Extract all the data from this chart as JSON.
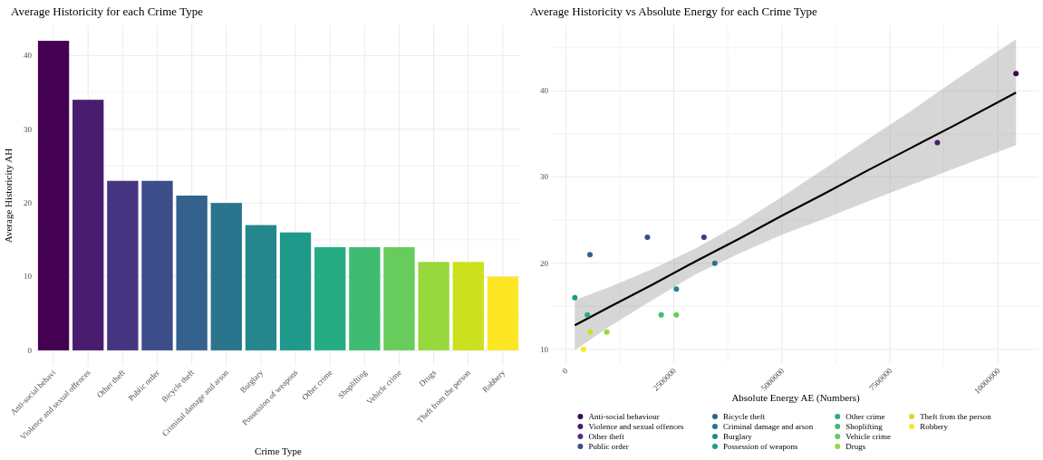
{
  "chart_data": [
    {
      "type": "bar",
      "title": "Average Historicity for each Crime Type",
      "xlabel": "Crime Type",
      "ylabel": "Average Historicity AH",
      "categories": [
        "Anti-social behavi",
        "Violence and sexual offences",
        "Other theft",
        "Public order",
        "Bicycle theft",
        "Criminal damage and arson",
        "Burglary",
        "Possession of weapons",
        "Other crime",
        "Shoplifting",
        "Vehicle crime",
        "Drugs",
        "Theft from the person",
        "Robbery"
      ],
      "values": [
        42,
        34,
        23,
        23,
        21,
        20,
        17,
        16,
        14,
        14,
        14,
        12,
        12,
        10
      ],
      "colors": [
        "#440154",
        "#481c6e",
        "#453581",
        "#3d4d8a",
        "#34618d",
        "#2b748e",
        "#24878e",
        "#1f998a",
        "#25ac82",
        "#40bc72",
        "#67cc5c",
        "#97d83f",
        "#cbe11e",
        "#fde725"
      ],
      "ylim": [
        -2.1,
        44.1
      ],
      "yticks": [
        0,
        {
          "value": 5,
          "label": null
        },
        10,
        {
          "value": 15,
          "label": null
        },
        20,
        {
          "value": 25,
          "label": null
        },
        30,
        {
          "value": 35,
          "label": null
        },
        40
      ],
      "grid": true
    },
    {
      "type": "scatter",
      "title": "Average Historicity vs Absolute Energy for each Crime Type",
      "xlabel": "Absolute Energy AE (Numbers)",
      "xlim": [
        -300000,
        10940000
      ],
      "ylim": [
        8.3,
        47.6
      ],
      "xticks": [
        0,
        {
          "value": 1250000,
          "label": null
        },
        2500000,
        {
          "value": 3750000,
          "label": null
        },
        5000000,
        {
          "value": 6250000,
          "label": null
        },
        7500000,
        {
          "value": 8750000,
          "label": null
        },
        10000000
      ],
      "yticks": [
        10,
        {
          "value": 15,
          "label": null
        },
        20,
        {
          "value": 25,
          "label": null
        },
        30,
        {
          "value": 35,
          "label": null
        },
        40,
        {
          "value": 45,
          "label": null
        }
      ],
      "grid": true,
      "legend": "bottom",
      "marker": "circle",
      "series": [
        {
          "name": "Anti-social behaviour",
          "color": "#440154",
          "x": [
            10420000
          ],
          "values": [
            42
          ]
        },
        {
          "name": "Violence and sexual offences",
          "color": "#481c6e",
          "x": [
            8600000
          ],
          "values": [
            34
          ]
        },
        {
          "name": "Other theft",
          "color": "#453581",
          "x": [
            3200000
          ],
          "values": [
            23
          ]
        },
        {
          "name": "Public order",
          "color": "#3d4d8a",
          "x": [
            1890000
          ],
          "values": [
            23
          ]
        },
        {
          "name": "Bicycle theft",
          "color": "#34618d",
          "x": [
            560000
          ],
          "values": [
            21
          ]
        },
        {
          "name": "Criminal damage and arson",
          "color": "#2b748e",
          "x": [
            3450000
          ],
          "values": [
            20
          ]
        },
        {
          "name": "Burglary",
          "color": "#24878e",
          "x": [
            2560000
          ],
          "values": [
            17
          ]
        },
        {
          "name": "Possession of weapons",
          "color": "#1f998a",
          "x": [
            210000
          ],
          "values": [
            16
          ]
        },
        {
          "name": "Other crime",
          "color": "#25ac82",
          "x": [
            500000
          ],
          "values": [
            14
          ]
        },
        {
          "name": "Shoplifting",
          "color": "#40bc72",
          "x": [
            2210000
          ],
          "values": [
            14
          ]
        },
        {
          "name": "Vehicle crime",
          "color": "#67cc5c",
          "x": [
            2560000
          ],
          "values": [
            14
          ]
        },
        {
          "name": "Drugs",
          "color": "#97d83f",
          "x": [
            950000
          ],
          "values": [
            12
          ]
        },
        {
          "name": "Theft from the person",
          "color": "#cbe11e",
          "x": [
            570000
          ],
          "values": [
            12
          ]
        },
        {
          "name": "Robbery",
          "color": "#fde725",
          "x": [
            410000
          ],
          "values": [
            10
          ]
        },
        {
          "type": "line",
          "color": "#000000",
          "marker": "none",
          "x": [
            210000,
            1000000,
            2000000,
            3000000,
            4000000,
            5000000,
            6000000,
            7000000,
            8000000,
            9000000,
            10420000
          ],
          "values": [
            12.8,
            14.9,
            17.5,
            20.2,
            22.8,
            25.5,
            28.1,
            30.8,
            33.4,
            36.0,
            39.8
          ],
          "lower": [
            9.9,
            12.6,
            15.7,
            18.7,
            21.1,
            23.3,
            25.2,
            27.2,
            29.1,
            31.0,
            33.7
          ],
          "upper": [
            15.7,
            17.2,
            19.3,
            21.7,
            24.5,
            27.7,
            31.0,
            34.4,
            37.7,
            41.2,
            46.0
          ]
        }
      ]
    }
  ]
}
